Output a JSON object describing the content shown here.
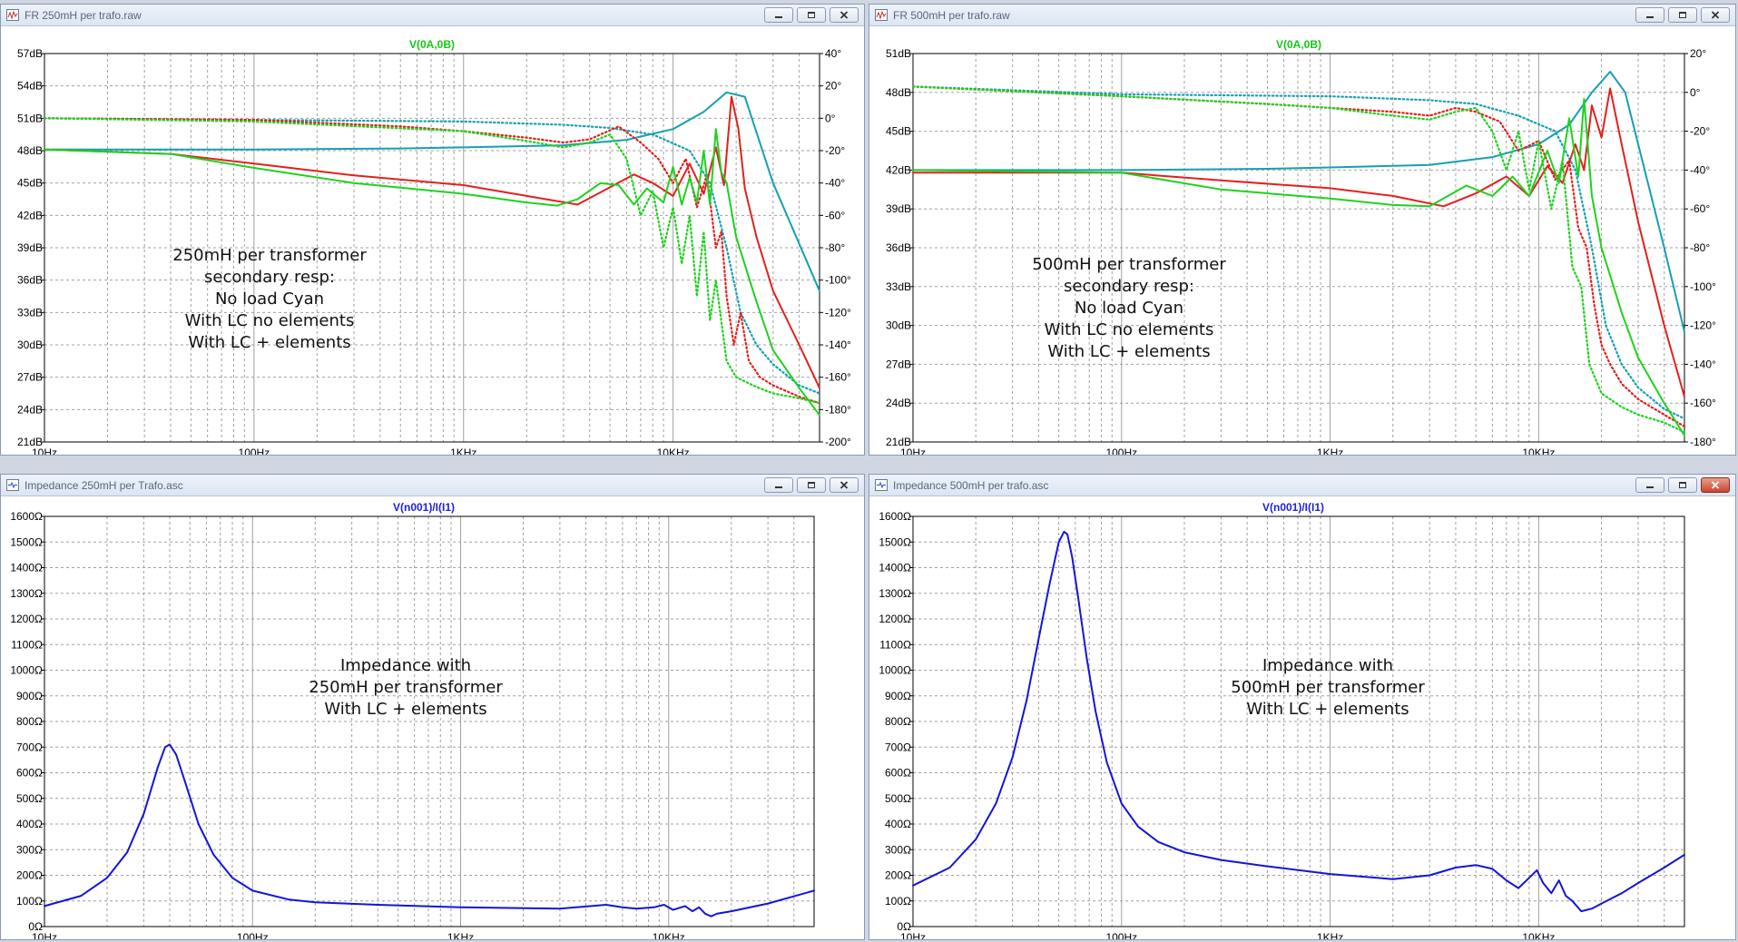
{
  "windows": [
    {
      "id": "fr250",
      "title": "FR 250mH per trafo.raw",
      "chart": "fr",
      "annotation_lines": [
        "250mH per transformer",
        "secondary resp:",
        "No load Cyan",
        "With LC no elements",
        "With LC + elements"
      ],
      "active": false
    },
    {
      "id": "fr500",
      "title": "FR 500mH per trafo.raw",
      "chart": "fr",
      "annotation_lines": [
        "500mH per transformer",
        "secondary resp:",
        "No load Cyan",
        "With LC no elements",
        "With LC + elements"
      ],
      "active": false
    },
    {
      "id": "imp250",
      "title": "Impedance 250mH per Trafo.asc",
      "chart": "imp",
      "annotation_lines": [
        "Impedance with",
        "250mH per transformer",
        "With LC + elements"
      ],
      "active": false
    },
    {
      "id": "imp500",
      "title": "Impedance 500mH per trafo.asc",
      "chart": "imp",
      "annotation_lines": [
        "Impedance with",
        "500mH per transformer",
        "With LC + elements"
      ],
      "active": true
    }
  ],
  "colors": {
    "cyan": "#14a0b4",
    "red": "#e4201c",
    "green": "#1ed21e",
    "blue": "#1414dc",
    "grid": "#a0a0a0",
    "trace_label_green": "#12c812",
    "trace_label_blue": "#2020e0"
  },
  "chart_data": [
    {
      "type": "line",
      "window": "FR 250mH per trafo.raw",
      "title": "V(0A,0B)",
      "x_scale": "log",
      "xlim": [
        10,
        50000
      ],
      "xticks": [
        "10Hz",
        "100Hz",
        "1KHz",
        "10KHz"
      ],
      "ylim_left": [
        21,
        57
      ],
      "ylim_right": [
        -200,
        40
      ],
      "yticks_left": [
        "57dB",
        "54dB",
        "51dB",
        "48dB",
        "45dB",
        "42dB",
        "39dB",
        "36dB",
        "33dB",
        "30dB",
        "27dB",
        "24dB",
        "21dB"
      ],
      "yticks_right": [
        "40°",
        "20°",
        "0°",
        "-20°",
        "-40°",
        "-60°",
        "-80°",
        "-100°",
        "-120°",
        "-140°",
        "-160°",
        "-180°",
        "-200°"
      ],
      "grid": true,
      "series": [
        {
          "color": "cyan",
          "axis": "left",
          "style": "solid",
          "x": [
            10,
            100,
            500,
            1000,
            3000,
            6000,
            10000,
            14000,
            18000,
            22000,
            30000,
            50000
          ],
          "y": [
            48.1,
            48.1,
            48.2,
            48.3,
            48.5,
            49.0,
            50.0,
            51.6,
            53.4,
            53.0,
            45.0,
            35.0
          ]
        },
        {
          "color": "cyan",
          "axis": "right",
          "style": "dotted",
          "x": [
            10,
            100,
            1000,
            3000,
            5000,
            8000,
            12000,
            15000,
            18000,
            21000,
            25000,
            30000,
            40000,
            50000
          ],
          "y": [
            0,
            -1,
            -2,
            -4,
            -6,
            -10,
            -20,
            -40,
            -80,
            -120,
            -140,
            -152,
            -165,
            -170
          ]
        },
        {
          "color": "red",
          "axis": "left",
          "style": "solid",
          "x": [
            10,
            40,
            100,
            300,
            1000,
            2000,
            3500,
            5000,
            6500,
            8000,
            10000,
            12000,
            14000,
            16000,
            17500,
            19000,
            20500,
            22000,
            25000,
            30000,
            40000,
            50000
          ],
          "y": [
            48.1,
            47.7,
            46.8,
            45.7,
            44.8,
            43.8,
            43.0,
            44.6,
            45.8,
            45.0,
            43.8,
            46.8,
            44.0,
            48.3,
            44.8,
            53.0,
            50.0,
            44.5,
            40.0,
            35.0,
            30.0,
            26.0
          ]
        },
        {
          "color": "red",
          "axis": "right",
          "style": "dotted",
          "x": [
            10,
            100,
            500,
            1000,
            2000,
            3000,
            4000,
            5500,
            7000,
            8500,
            10000,
            11500,
            13000,
            14500,
            16000,
            17000,
            18000,
            19500,
            21000,
            23000,
            26000,
            30000,
            40000,
            50000
          ],
          "y": [
            0,
            -1,
            -5,
            -8,
            -12,
            -15,
            -13,
            -5,
            -15,
            -25,
            -40,
            -25,
            -55,
            -35,
            -80,
            -70,
            -110,
            -140,
            -120,
            -150,
            -160,
            -165,
            -172,
            -176
          ]
        },
        {
          "color": "green",
          "axis": "left",
          "style": "solid",
          "x": [
            10,
            40,
            100,
            300,
            1000,
            2000,
            2800,
            3500,
            4500,
            5500,
            6500,
            7500,
            9000,
            10000,
            11000,
            12000,
            13000,
            14000,
            15000,
            16000,
            17000,
            18000,
            20000,
            25000,
            30000,
            40000,
            50000
          ],
          "y": [
            48.1,
            47.7,
            46.4,
            45.0,
            44.0,
            43.2,
            42.9,
            43.5,
            45.0,
            44.8,
            43.0,
            44.5,
            43.2,
            46.5,
            43.0,
            45.5,
            43.2,
            48.0,
            43.0,
            50.0,
            46.0,
            45.0,
            40.0,
            34.0,
            29.5,
            26.0,
            23.5
          ]
        },
        {
          "color": "green",
          "axis": "right",
          "style": "dotted",
          "x": [
            10,
            100,
            1000,
            2000,
            3000,
            4000,
            5000,
            6000,
            7000,
            8000,
            9000,
            10000,
            11000,
            12000,
            13000,
            14000,
            15000,
            16000,
            18000,
            20000,
            25000,
            30000,
            40000,
            50000
          ],
          "y": [
            0,
            -2,
            -8,
            -14,
            -18,
            -15,
            -10,
            -25,
            -60,
            -45,
            -80,
            -55,
            -90,
            -60,
            -110,
            -70,
            -125,
            -100,
            -150,
            -160,
            -166,
            -170,
            -173,
            -176
          ]
        }
      ]
    },
    {
      "type": "line",
      "window": "FR 500mH per trafo.raw",
      "title": "V(0A,0B)",
      "x_scale": "log",
      "xlim": [
        10,
        50000
      ],
      "xticks": [
        "10Hz",
        "100Hz",
        "1KHz",
        "10KHz"
      ],
      "ylim_left": [
        21,
        51
      ],
      "ylim_right": [
        -180,
        20
      ],
      "yticks_left": [
        "51dB",
        "48dB",
        "45dB",
        "42dB",
        "39dB",
        "36dB",
        "33dB",
        "30dB",
        "27dB",
        "24dB",
        "21dB"
      ],
      "yticks_right": [
        "20°",
        "0°",
        "-20°",
        "-40°",
        "-60°",
        "-80°",
        "-100°",
        "-120°",
        "-140°",
        "-160°",
        "-180°"
      ],
      "grid": true,
      "series": [
        {
          "color": "cyan",
          "axis": "left",
          "style": "solid",
          "x": [
            10,
            100,
            500,
            1000,
            3000,
            6000,
            10000,
            14000,
            18000,
            22000,
            26000,
            30000,
            40000,
            50000
          ],
          "y": [
            42.0,
            42.0,
            42.1,
            42.2,
            42.4,
            43.0,
            44.0,
            45.5,
            48.0,
            49.6,
            48.0,
            44.0,
            36.0,
            29.5
          ]
        },
        {
          "color": "cyan",
          "axis": "right",
          "style": "dotted",
          "x": [
            10,
            100,
            1000,
            3000,
            5000,
            8000,
            12000,
            15000,
            18000,
            21000,
            25000,
            30000,
            40000,
            50000
          ],
          "y": [
            3,
            -1,
            -2,
            -4,
            -6,
            -12,
            -20,
            -40,
            -80,
            -120,
            -140,
            -152,
            -163,
            -168
          ]
        },
        {
          "color": "red",
          "axis": "left",
          "style": "solid",
          "x": [
            10,
            100,
            300,
            1000,
            2000,
            3500,
            5000,
            7000,
            9000,
            11000,
            13000,
            15000,
            16500,
            18000,
            20000,
            22000,
            25000,
            30000,
            40000,
            50000
          ],
          "y": [
            41.8,
            41.8,
            41.2,
            40.6,
            40.0,
            39.2,
            40.2,
            41.5,
            40.0,
            42.3,
            41.0,
            44.0,
            42.0,
            47.0,
            44.5,
            48.3,
            44.0,
            38.0,
            30.0,
            24.5
          ]
        },
        {
          "color": "red",
          "axis": "right",
          "style": "dotted",
          "x": [
            10,
            100,
            500,
            1000,
            2000,
            3000,
            4000,
            5000,
            6500,
            8000,
            10000,
            12000,
            14000,
            15500,
            17000,
            18500,
            20000,
            22000,
            25000,
            30000,
            40000,
            50000
          ],
          "y": [
            3,
            -2,
            -6,
            -8,
            -10,
            -12,
            -8,
            -10,
            -15,
            -30,
            -25,
            -45,
            -35,
            -70,
            -80,
            -110,
            -130,
            -140,
            -150,
            -158,
            -166,
            -172
          ]
        },
        {
          "color": "green",
          "axis": "left",
          "style": "solid",
          "x": [
            10,
            100,
            300,
            1000,
            2000,
            3000,
            4500,
            6000,
            7500,
            9000,
            11000,
            12500,
            14000,
            15500,
            16500,
            18000,
            20000,
            25000,
            30000,
            40000,
            50000
          ],
          "y": [
            42.0,
            41.8,
            40.5,
            39.8,
            39.3,
            39.2,
            40.8,
            40.0,
            41.5,
            40.0,
            43.5,
            41.0,
            46.0,
            41.5,
            47.5,
            40.0,
            36.0,
            31.0,
            27.5,
            24.0,
            21.5
          ]
        },
        {
          "color": "green",
          "axis": "right",
          "style": "dotted",
          "x": [
            10,
            100,
            500,
            1000,
            2000,
            3000,
            4000,
            5000,
            6000,
            7000,
            8000,
            9000,
            10000,
            11500,
            13000,
            14500,
            16000,
            17500,
            20000,
            25000,
            30000,
            40000,
            50000
          ],
          "y": [
            3,
            -2,
            -6,
            -8,
            -12,
            -14,
            -10,
            -8,
            -20,
            -40,
            -20,
            -50,
            -25,
            -60,
            -35,
            -90,
            -100,
            -140,
            -155,
            -162,
            -166,
            -170,
            -175
          ]
        }
      ]
    },
    {
      "type": "line",
      "window": "Impedance 250mH per Trafo.asc",
      "title": "V(n001)/I(I1)",
      "x_scale": "log",
      "xlim": [
        10,
        50000
      ],
      "xticks": [
        "10Hz",
        "100Hz",
        "1KHz",
        "10KHz"
      ],
      "ylim": [
        0,
        1600
      ],
      "yticks": [
        "1600Ω",
        "1500Ω",
        "1400Ω",
        "1300Ω",
        "1200Ω",
        "1100Ω",
        "1000Ω",
        "900Ω",
        "800Ω",
        "700Ω",
        "600Ω",
        "500Ω",
        "400Ω",
        "300Ω",
        "200Ω",
        "100Ω",
        "0Ω"
      ],
      "grid": true,
      "series": [
        {
          "color": "blue",
          "axis": "left",
          "style": "solid",
          "x": [
            10,
            15,
            20,
            25,
            30,
            35,
            38,
            40,
            43,
            48,
            55,
            65,
            80,
            100,
            150,
            200,
            400,
            1000,
            3000,
            5000,
            6000,
            7000,
            8500,
            9500,
            10500,
            12000,
            13000,
            14000,
            15000,
            16000,
            17000,
            20000,
            30000,
            50000
          ],
          "y": [
            80,
            120,
            190,
            290,
            440,
            620,
            700,
            710,
            670,
            550,
            400,
            280,
            190,
            140,
            105,
            95,
            85,
            75,
            70,
            85,
            75,
            70,
            75,
            85,
            65,
            80,
            60,
            75,
            50,
            40,
            50,
            60,
            90,
            140
          ]
        }
      ]
    },
    {
      "type": "line",
      "window": "Impedance 500mH per trafo.asc",
      "title": "V(n001)/I(I1)",
      "x_scale": "log",
      "xlim": [
        10,
        50000
      ],
      "xticks": [
        "10Hz",
        "100Hz",
        "1KHz",
        "10KHz"
      ],
      "ylim": [
        0,
        1600
      ],
      "yticks": [
        "1600Ω",
        "1500Ω",
        "1400Ω",
        "1300Ω",
        "1200Ω",
        "1100Ω",
        "1000Ω",
        "900Ω",
        "800Ω",
        "700Ω",
        "600Ω",
        "500Ω",
        "400Ω",
        "300Ω",
        "200Ω",
        "100Ω",
        "0Ω"
      ],
      "grid": true,
      "series": [
        {
          "color": "blue",
          "axis": "left",
          "style": "solid",
          "x": [
            10,
            15,
            20,
            25,
            30,
            35,
            40,
            45,
            50,
            53,
            55,
            58,
            62,
            68,
            75,
            85,
            100,
            120,
            150,
            200,
            300,
            500,
            1000,
            2000,
            3000,
            4000,
            5000,
            6000,
            7000,
            8000,
            9000,
            9800,
            10500,
            11500,
            12500,
            13500,
            14500,
            16000,
            18000,
            20000,
            25000,
            30000,
            40000,
            50000
          ],
          "y": [
            160,
            230,
            340,
            480,
            660,
            880,
            1120,
            1330,
            1500,
            1540,
            1530,
            1440,
            1280,
            1050,
            840,
            640,
            480,
            390,
            330,
            290,
            260,
            235,
            205,
            185,
            200,
            230,
            240,
            225,
            180,
            150,
            190,
            220,
            170,
            130,
            180,
            120,
            100,
            60,
            70,
            90,
            130,
            170,
            230,
            280
          ]
        }
      ]
    }
  ]
}
